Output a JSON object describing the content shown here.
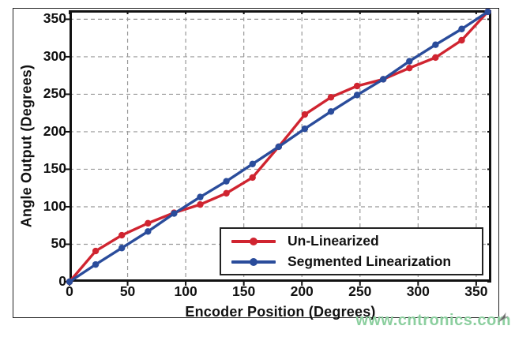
{
  "watermark": "www.cntronics.com",
  "colors": {
    "unlinearized_red": "#d02430",
    "segmented_blue": "#2a4c9b",
    "grid": "#999999",
    "axis": "#111111",
    "watermark_green": "#8ccf9f"
  },
  "chart_data": {
    "type": "line",
    "title": "",
    "xlabel": "Encoder Position (Degrees)",
    "ylabel": "Angle Output (Degrees)",
    "xlim": [
      0,
      363
    ],
    "ylim": [
      0,
      362
    ],
    "x_ticks": [
      0,
      50,
      100,
      150,
      200,
      250,
      300,
      350
    ],
    "y_ticks": [
      0,
      50,
      100,
      150,
      200,
      250,
      300,
      350
    ],
    "grid": true,
    "legend_position": "inside-lower-right",
    "x": [
      0,
      22.5,
      45,
      67.5,
      90,
      112.5,
      135,
      157.5,
      180,
      202.5,
      225,
      247.5,
      270,
      292.5,
      315,
      337.5,
      360
    ],
    "series": [
      {
        "name": "Un-Linearized",
        "color": "#d02430",
        "values": [
          0,
          41,
          62,
          78,
          92,
          103,
          118,
          139,
          180,
          223,
          246,
          261,
          270,
          285,
          299,
          322,
          360
        ]
      },
      {
        "name": "Segmented Linearization",
        "color": "#2a4c9b",
        "values": [
          0,
          23,
          45,
          67,
          91,
          113,
          134,
          157,
          180,
          204,
          227,
          249,
          270,
          294,
          316,
          337,
          360
        ]
      }
    ]
  }
}
